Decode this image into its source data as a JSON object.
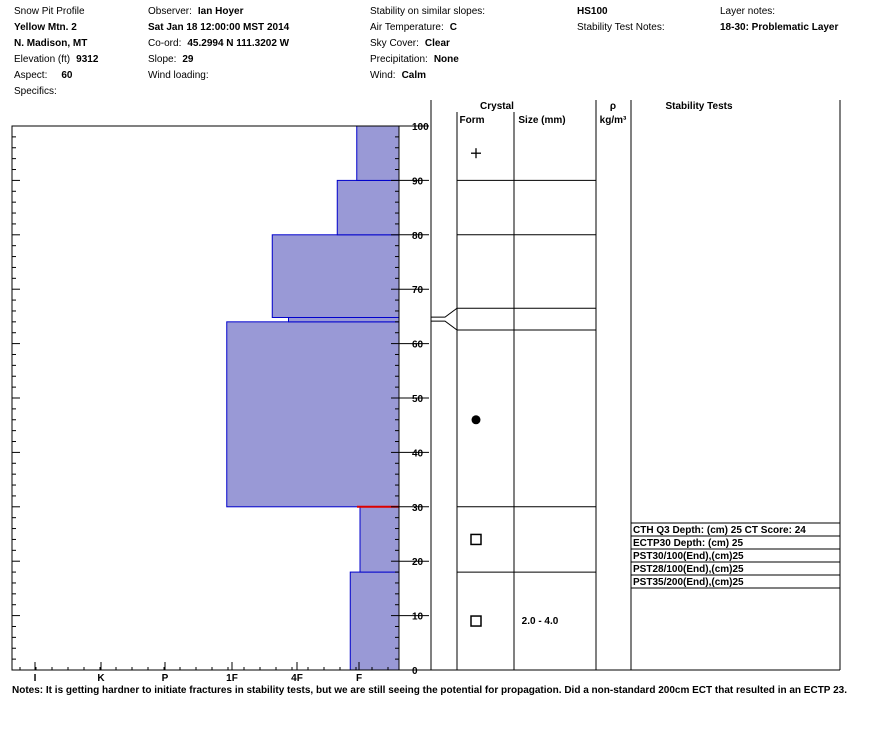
{
  "header": {
    "title": "Snow Pit Profile",
    "location": "Yellow Mtn. 2",
    "region": "N. Madison, MT",
    "elevation_label": "Elevation (ft)",
    "elevation": "9312",
    "aspect_label": "Aspect:",
    "aspect": "60",
    "specifics_label": "Specifics:",
    "observer_label": "Observer:",
    "observer": "Ian Hoyer",
    "datetime": "Sat Jan 18 12:00:00 MST 2014",
    "coord_label": "Co-ord:",
    "coord": "45.2994 N 111.3202 W",
    "slope_label": "Slope:",
    "slope": "29",
    "wind_loading_label": "Wind loading:",
    "stability_label": "Stability on similar slopes:",
    "air_temp_label": "Air Temperature:",
    "air_temp": "C",
    "sky_label": "Sky Cover:",
    "sky": "Clear",
    "precip_label": "Precipitation:",
    "precip": "None",
    "wind_label": "Wind:",
    "wind": "Calm",
    "hs": "HS100",
    "stability_notes_label": "Stability Test Notes:",
    "layer_notes_label": "Layer notes:",
    "layer_notes": "18-30: Problematic Layer"
  },
  "columns": {
    "crystal": "Crystal",
    "form": "Form",
    "size": "Size (mm)",
    "rho": "ρ",
    "rho_unit": "kg/m³",
    "stability": "Stability Tests"
  },
  "notes": {
    "label": "Notes:",
    "text": "It is getting hardner to initiate fractures in stability tests, but we are still seeing the potential for propagation. Did a non-standard 200cm ECT that resulted in an ECTP 23."
  },
  "chart_data": {
    "type": "bar",
    "ylim": [
      0,
      100
    ],
    "y_ticks": [
      "0",
      "10",
      "20",
      "30",
      "40",
      "50",
      "60",
      "70",
      "80",
      "90",
      "100"
    ],
    "hardness_scale": [
      "I",
      "K",
      "P",
      "1F",
      "4F",
      "F"
    ],
    "hardness_layers": [
      {
        "from": 0,
        "to": 18,
        "hardness": 1.5
      },
      {
        "from": 18,
        "to": 30,
        "hardness": 1.2
      },
      {
        "from": 30,
        "to": 64,
        "hardness": 5.3
      },
      {
        "from": 64,
        "to": 64.8,
        "hardness": 3.4
      },
      {
        "from": 64.8,
        "to": 80,
        "hardness": 3.9
      },
      {
        "from": 80,
        "to": 90,
        "hardness": 1.9
      },
      {
        "from": 90,
        "to": 100,
        "hardness": 1.3
      }
    ],
    "layer_boundaries": [
      18,
      30,
      62.5,
      66.5,
      80,
      90
    ],
    "crystal_symbols": [
      {
        "depth": 95,
        "symbol": "+"
      },
      {
        "depth": 46,
        "symbol": "●"
      },
      {
        "depth": 24,
        "symbol": "□"
      },
      {
        "depth": 9,
        "symbol": "□"
      }
    ],
    "crystal_sizes": [
      {
        "depth": 9,
        "size": "2.0 - 4.0"
      }
    ],
    "problem_layer_depth": 30,
    "stability_tests": [
      "CTH Q3 Depth: (cm) 25 CT Score: 24",
      "ECTP30   Depth: (cm) 25",
      "PST30/100(End),(cm)25",
      "PST28/100(End),(cm)25",
      "PST35/200(End),(cm)25"
    ],
    "colors": {
      "fill": "#9999d6",
      "edge": "#0000cc",
      "problem": "#dd0000"
    }
  }
}
